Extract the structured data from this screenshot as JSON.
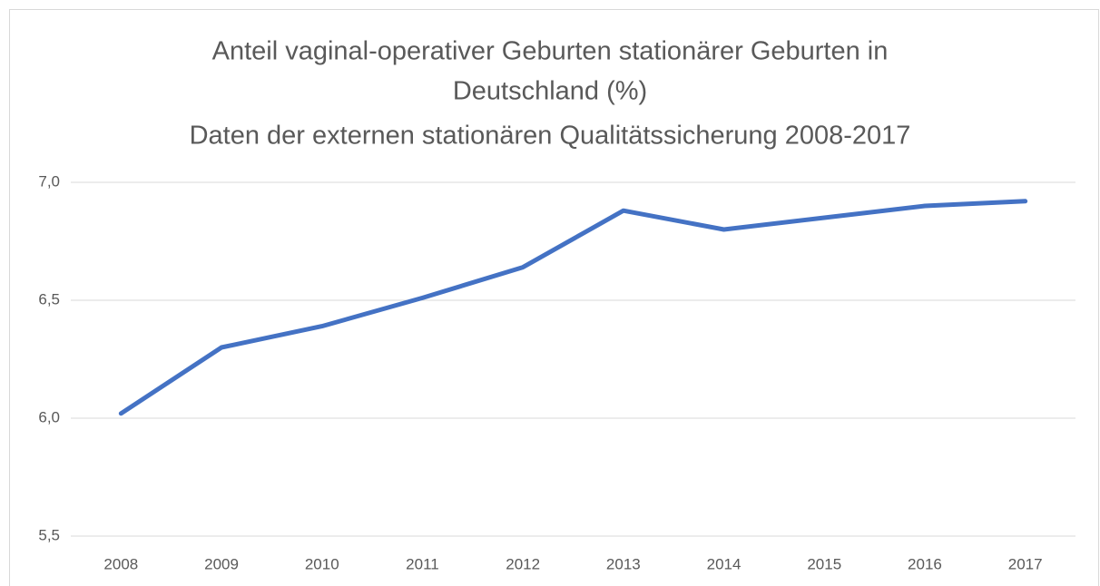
{
  "chart_data": {
    "type": "line",
    "title": [
      "Anteil vaginal-operativer Geburten stationärer Geburten in",
      "Deutschland (%)"
    ],
    "subtitle": "Daten der externen stationären Qualitätssicherung 2008-2017",
    "categories": [
      "2008",
      "2009",
      "2010",
      "2011",
      "2012",
      "2013",
      "2014",
      "2015",
      "2016",
      "2017"
    ],
    "series": [
      {
        "name": "Anteil vaginal-operativer Geburten",
        "color": "#4472c4",
        "values": [
          6.02,
          6.3,
          6.39,
          6.51,
          6.64,
          6.88,
          6.8,
          6.85,
          6.9,
          6.92
        ]
      }
    ],
    "ylim": [
      5.5,
      7.0
    ],
    "yticks": [
      {
        "value": 5.5,
        "label": "5,5"
      },
      {
        "value": 6.0,
        "label": "6,0"
      },
      {
        "value": 6.5,
        "label": "6,5"
      },
      {
        "value": 7.0,
        "label": "7,0"
      }
    ],
    "grid": true
  }
}
